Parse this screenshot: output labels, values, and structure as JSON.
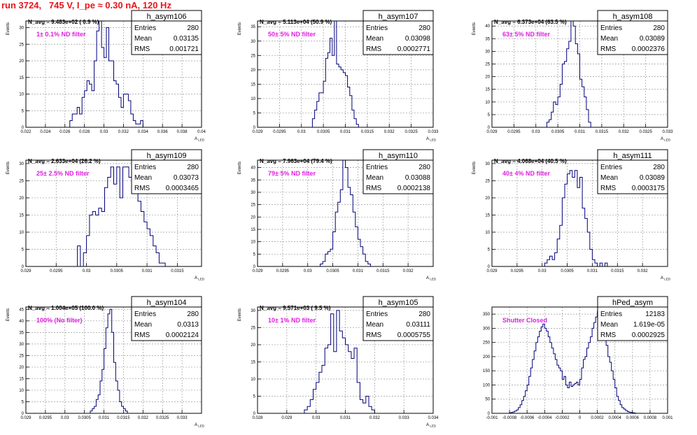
{
  "header": {
    "title": "run 3724,   745 V, I_pe ≈ 0.30 nA, 120 Hz"
  },
  "colors": {
    "title": "#e8141c",
    "line": "#00007a",
    "annotation": "#e020e0",
    "grid": "#9a9a9a",
    "frame": "#000000"
  },
  "chart_data": [
    {
      "type": "histogram",
      "name": "h_asym106",
      "stats": {
        "Entries": "280",
        "Mean": "0.03135",
        "RMS": "0.001721"
      },
      "navg": "N_avg = 9.483e+02 ( 0.9 %)",
      "note": "1± 0.1% ND filter",
      "ylabel": "Events",
      "xlabel": "A_{LED}",
      "xlim": [
        0.022,
        0.04
      ],
      "ylim": [
        0,
        32
      ],
      "xticks": [
        "0.022",
        "0.024",
        "0.026",
        "0.028",
        "0.03",
        "0.032",
        "0.034",
        "0.036",
        "0.038",
        "0.04"
      ],
      "xtick_values": [
        0.022,
        0.024,
        0.026,
        0.028,
        0.03,
        0.032,
        0.034,
        0.036,
        0.038,
        0.04
      ],
      "yticks": [
        0,
        5,
        10,
        15,
        20,
        25,
        30
      ],
      "bins": {
        "start": 0.0265,
        "width": 0.00025,
        "counts": [
          2,
          4,
          4,
          6,
          4,
          9,
          11,
          14,
          13,
          11,
          20,
          29,
          33,
          24,
          21,
          30,
          20,
          20,
          14,
          13,
          9,
          6,
          10,
          10,
          8,
          4,
          2,
          1,
          1,
          2
        ]
      }
    },
    {
      "type": "histogram",
      "name": "h_asym107",
      "stats": {
        "Entries": "280",
        "Mean": "0.03098",
        "RMS": "0.0002771"
      },
      "navg": "N_avg = 5.113e+04 (50.9 %)",
      "note": "50± 5% ND filter",
      "ylabel": "Events",
      "xlabel": "A_{LED}",
      "xlim": [
        0.029,
        0.033
      ],
      "ylim": [
        0,
        37
      ],
      "xticks": [
        "0.029",
        "0.0295",
        "0.03",
        "0.0305",
        "0.031",
        "0.0315",
        "0.032",
        "0.0325",
        "0.033"
      ],
      "xtick_values": [
        0.029,
        0.0295,
        0.03,
        0.0305,
        0.031,
        0.0315,
        0.032,
        0.0325,
        0.033
      ],
      "yticks": [
        0,
        5,
        10,
        15,
        20,
        25,
        30,
        35
      ],
      "bins": {
        "start": 0.03025,
        "width": 5e-05,
        "counts": [
          3,
          6,
          9,
          12,
          12,
          16,
          24,
          26,
          31,
          25,
          37,
          22,
          21,
          20,
          19,
          18,
          14,
          11,
          6,
          3,
          1
        ]
      }
    },
    {
      "type": "histogram",
      "name": "h_asym108",
      "stats": {
        "Entries": "280",
        "Mean": "0.03089",
        "RMS": "0.0002376"
      },
      "navg": "N_avg = 6.373e+04 (63.5 %)",
      "note": "63± 5% ND filter",
      "ylabel": "Events",
      "xlabel": "A_{LED}",
      "xlim": [
        0.029,
        0.033
      ],
      "ylim": [
        0,
        42
      ],
      "xticks": [
        "0.029",
        "0.0295",
        "0.03",
        "0.0305",
        "0.031",
        "0.0315",
        "0.032",
        "0.0325",
        "0.033"
      ],
      "xtick_values": [
        0.029,
        0.0295,
        0.03,
        0.0305,
        0.031,
        0.0315,
        0.032,
        0.0325,
        0.033
      ],
      "yticks": [
        0,
        5,
        10,
        15,
        20,
        25,
        30,
        35,
        40
      ],
      "bins": {
        "start": 0.03025,
        "width": 5e-05,
        "counts": [
          2,
          3,
          6,
          10,
          9,
          12,
          17,
          25,
          26,
          31,
          34,
          43,
          40,
          33,
          29,
          19,
          16,
          12,
          7,
          2
        ]
      }
    },
    {
      "type": "histogram",
      "name": "h_asym109",
      "stats": {
        "Entries": "280",
        "Mean": "0.03073",
        "RMS": "0.0003465"
      },
      "navg": "N_avg = 2.633e+04 (26.2 %)",
      "note": "25± 2.5% ND filter",
      "ylabel": "Events",
      "xlabel": "A_{LED}",
      "xlim": [
        0.029,
        0.0319
      ],
      "ylim": [
        0,
        31
      ],
      "xticks": [
        "0.029",
        "0.0295",
        "0.03",
        "0.0305",
        "0.031",
        "0.0315"
      ],
      "xtick_values": [
        0.029,
        0.0295,
        0.03,
        0.0305,
        0.031,
        0.0315
      ],
      "yticks": [
        0,
        5,
        10,
        15,
        20,
        25,
        30
      ],
      "bins": {
        "start": 0.02985,
        "width": 5e-05,
        "counts": [
          6,
          0,
          4,
          9,
          15,
          16,
          15,
          17,
          16,
          23,
          26,
          29,
          24,
          29,
          20,
          29,
          29,
          26,
          25,
          22,
          19,
          16,
          13,
          11,
          9,
          6,
          4,
          1,
          1
        ]
      }
    },
    {
      "type": "histogram",
      "name": "h_asym110",
      "stats": {
        "Entries": "280",
        "Mean": "0.03088",
        "RMS": "0.0002138"
      },
      "navg": "N_avg = 7.963e+04 (79.4 %)",
      "note": "79± 5% ND filter",
      "ylabel": "Events",
      "xlabel": "A_{LED}",
      "xlim": [
        0.029,
        0.0325
      ],
      "ylim": [
        0,
        43
      ],
      "xticks": [
        "0.029",
        "0.0295",
        "0.03",
        "0.0305",
        "0.031",
        "0.0315",
        "0.032"
      ],
      "xtick_values": [
        0.029,
        0.0295,
        0.03,
        0.0305,
        0.031,
        0.0315,
        0.032
      ],
      "yticks": [
        0,
        5,
        10,
        15,
        20,
        25,
        30,
        35,
        40
      ],
      "bins": {
        "start": 0.03025,
        "width": 5e-05,
        "counts": [
          1,
          2,
          5,
          6,
          7,
          14,
          22,
          26,
          31,
          45,
          40,
          32,
          29,
          22,
          16,
          11,
          8,
          5,
          2,
          1
        ]
      }
    },
    {
      "type": "histogram",
      "name": "h_asym111",
      "stats": {
        "Entries": "280",
        "Mean": "0.03089",
        "RMS": "0.0003175"
      },
      "navg": "N_avg = 4.068e+04 (40.5 %)",
      "note": "40± 4% ND filter",
      "ylabel": "Events",
      "xlabel": "A_{LED}",
      "xlim": [
        0.029,
        0.0325
      ],
      "ylim": [
        0,
        31
      ],
      "xticks": [
        "0.029",
        "0.0295",
        "0.03",
        "0.0305",
        "0.031",
        "0.0315",
        "0.032"
      ],
      "xtick_values": [
        0.029,
        0.0295,
        0.03,
        0.0305,
        0.031,
        0.0315,
        0.032
      ],
      "yticks": [
        0,
        5,
        10,
        15,
        20,
        25,
        30
      ],
      "bins": {
        "start": 0.03005,
        "width": 5e-05,
        "counts": [
          1,
          2,
          3,
          2,
          4,
          8,
          12,
          20,
          24,
          27,
          28,
          26,
          28,
          23,
          26,
          17,
          14,
          10,
          5,
          2,
          1,
          0,
          1,
          0,
          1
        ]
      }
    },
    {
      "type": "histogram",
      "name": "h_asym104",
      "stats": {
        "Entries": "280",
        "Mean": "0.0313",
        "RMS": "0.0002124"
      },
      "navg": "N_avg = 1.004e+05 (100.0 %)",
      "note": "100% (No filter)",
      "ylabel": "Events",
      "xlabel": "A_{LED}",
      "xlim": [
        0.029,
        0.0335
      ],
      "ylim": [
        0,
        46
      ],
      "xticks": [
        "0.029",
        "0.0295",
        "0.03",
        "0.0305",
        "0.031",
        "0.0315",
        "0.032",
        "0.0325",
        "0.033"
      ],
      "xtick_values": [
        0.029,
        0.0295,
        0.03,
        0.0305,
        0.031,
        0.0315,
        0.032,
        0.0325,
        0.033
      ],
      "yticks": [
        0,
        5,
        10,
        15,
        20,
        25,
        30,
        35,
        40,
        45
      ],
      "bins": {
        "start": 0.03065,
        "width": 5e-05,
        "counts": [
          1,
          2,
          3,
          6,
          8,
          14,
          19,
          28,
          37,
          43,
          45,
          35,
          22,
          14,
          10,
          5,
          3,
          2,
          1
        ]
      }
    },
    {
      "type": "histogram",
      "name": "h_asym105",
      "stats": {
        "Entries": "280",
        "Mean": "0.03111",
        "RMS": "0.0005755"
      },
      "navg": "N_avg = 9.571e+03 ( 9.5 %)",
      "note": "10± 1% ND filter",
      "ylabel": "Events",
      "xlabel": "A_{LED}",
      "xlim": [
        0.028,
        0.034
      ],
      "ylim": [
        0,
        31
      ],
      "xticks": [
        "0.028",
        "0.029",
        "0.03",
        "0.031",
        "0.032",
        "0.033",
        "0.034"
      ],
      "xtick_values": [
        0.028,
        0.029,
        0.03,
        0.031,
        0.032,
        0.033,
        0.034
      ],
      "yticks": [
        0,
        5,
        10,
        15,
        20,
        25,
        30
      ],
      "bins": {
        "start": 0.0296,
        "width": 0.0001,
        "counts": [
          1,
          2,
          4,
          7,
          9,
          12,
          14,
          19,
          20,
          29,
          18,
          30,
          24,
          22,
          20,
          18,
          16,
          19,
          9,
          4,
          3,
          5,
          2,
          1
        ]
      }
    },
    {
      "type": "histogram",
      "name": "hPed_asym",
      "stats": {
        "Entries": "12183",
        "Mean": "1.619e-05",
        "RMS": "0.0002925"
      },
      "navg": "",
      "note": "Shutter Closed",
      "ylabel": "",
      "xlabel": "",
      "xlim": [
        -0.001,
        0.001
      ],
      "ylim": [
        0,
        375
      ],
      "xticks": [
        "-0.001",
        "-0.0008",
        "-0.0006",
        "-0.0004",
        "-0.0002",
        "0",
        "0.0002",
        "0.0004",
        "0.0006",
        "0.0008",
        "0.001"
      ],
      "xtick_values": [
        -0.001,
        -0.0008,
        -0.0006,
        -0.0004,
        -0.0002,
        0,
        0.0002,
        0.0004,
        0.0006,
        0.0008,
        0.001
      ],
      "yticks": [
        0,
        50,
        100,
        150,
        200,
        250,
        300,
        350
      ],
      "bins": {
        "start": -0.0008,
        "width": 2e-05,
        "counts": [
          2,
          3,
          5,
          8,
          12,
          20,
          30,
          45,
          60,
          80,
          100,
          130,
          160,
          190,
          220,
          250,
          270,
          290,
          305,
          315,
          300,
          290,
          270,
          250,
          230,
          210,
          190,
          170,
          160,
          150,
          120,
          130,
          100,
          90,
          110,
          95,
          100,
          105,
          110,
          100,
          120,
          160,
          190,
          200,
          230,
          250,
          270,
          300,
          320,
          340,
          360,
          345,
          320,
          300,
          270,
          240,
          200,
          180,
          150,
          120,
          90,
          60,
          45,
          30,
          20,
          15,
          10,
          6,
          4,
          3,
          2,
          1
        ]
      }
    }
  ]
}
